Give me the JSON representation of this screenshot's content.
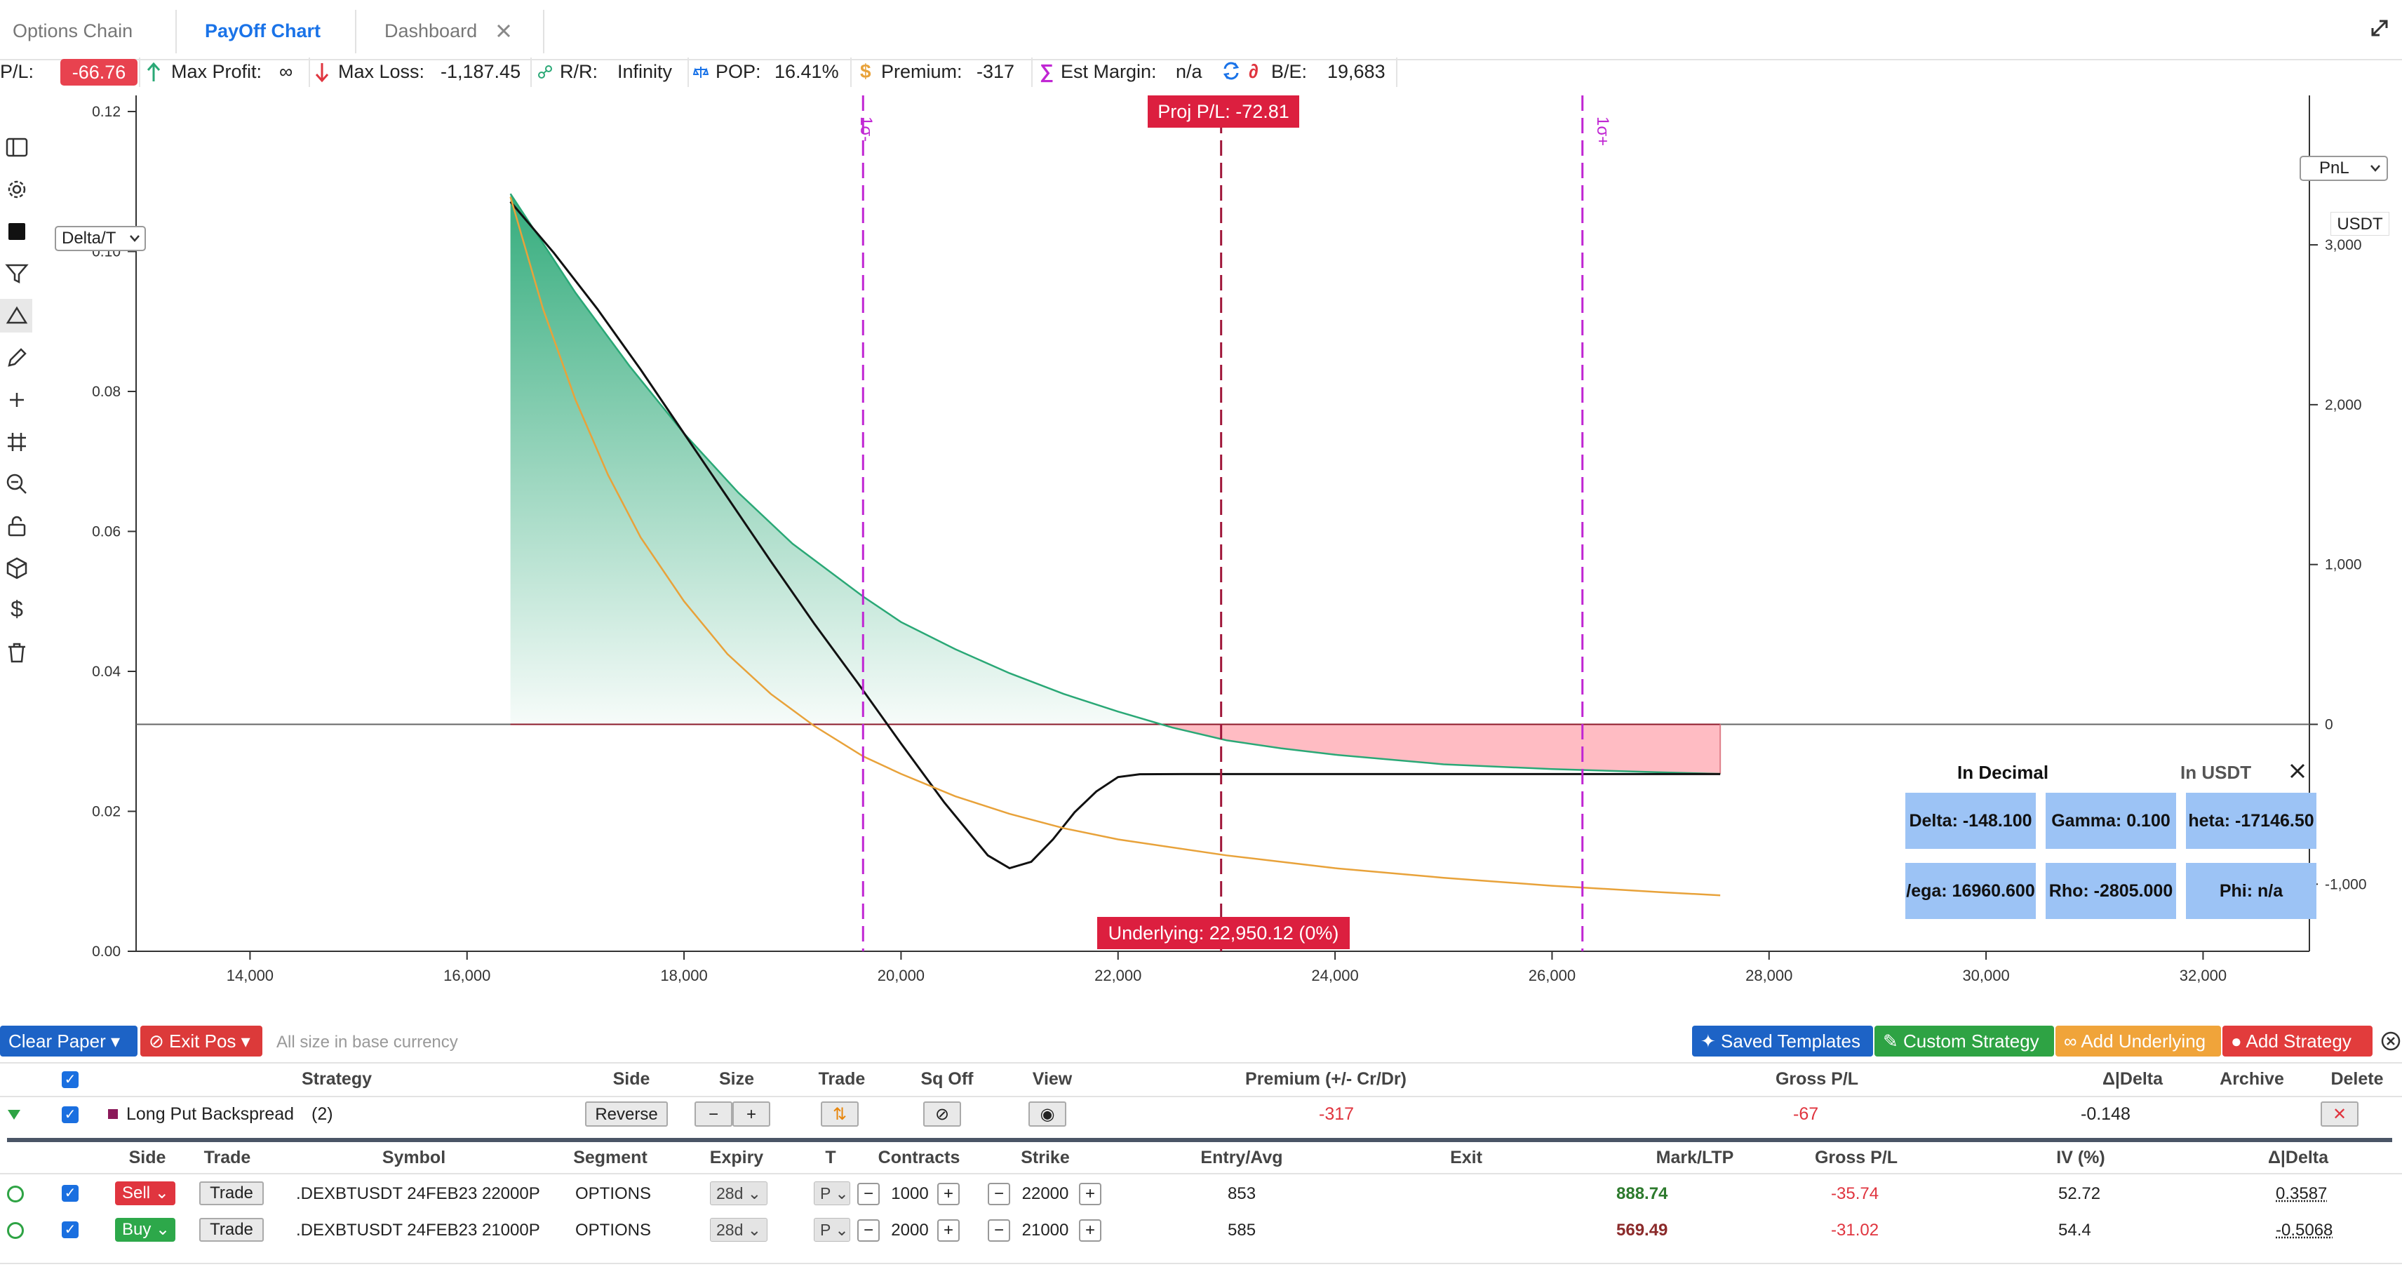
{
  "tabs": [
    {
      "label": "Options Chain"
    },
    {
      "label": "PayOff Chart"
    },
    {
      "label": "Dashboard"
    }
  ],
  "metrics": {
    "pl_label": "P/L:",
    "pl_value": "-66.76",
    "max_profit_label": "Max Profit:",
    "max_profit_value": "∞",
    "max_loss_label": "Max Loss:",
    "max_loss_value": "-1,187.45",
    "rr_label": "R/R:",
    "rr_value": "Infinity",
    "pop_label": "POP:",
    "pop_value": "16.41%",
    "premium_label": "Premium:",
    "premium_value": "-317",
    "margin_label": "Est Margin:",
    "margin_value": "n/a",
    "be_label": "B/E:",
    "be_value": "19,683"
  },
  "chart": {
    "proj_pl": "Proj P/L: -72.81",
    "underlying": "Underlying: 22,950.12 (0%)",
    "sigma_minus": "1σ-",
    "sigma_plus": "1σ+",
    "left_selector": "Delta/T",
    "right_selector": "PnL",
    "currency": "USDT"
  },
  "chart_data": {
    "type": "line",
    "x_ticks": [
      "14,000",
      "16,000",
      "18,000",
      "20,000",
      "22,000",
      "24,000",
      "26,000",
      "28,000",
      "30,000",
      "32,000"
    ],
    "xlim": [
      12950,
      32980
    ],
    "left_ticks": [
      "0.12",
      "0.10",
      "0.08",
      "0.06",
      "0.04",
      "0.02",
      "0.00"
    ],
    "ylim_left": [
      0,
      0.1215
    ],
    "right_ticks": [
      "3,000",
      "2,000",
      "1,000",
      "0",
      "-1,000"
    ],
    "ylim_right": [
      -1420,
      3900
    ],
    "vlines": [
      {
        "x": 19650,
        "label": "1σ-"
      },
      {
        "x": 22950,
        "label": ""
      },
      {
        "x": 26280,
        "label": "1σ+"
      }
    ],
    "series": [
      {
        "axis": "right",
        "color": "#2aa876",
        "values": [
          [
            16400,
            3320
          ],
          [
            17000,
            2700
          ],
          [
            17500,
            2240
          ],
          [
            18000,
            1820
          ],
          [
            18500,
            1450
          ],
          [
            19000,
            1130
          ],
          [
            19650,
            800
          ],
          [
            20000,
            640
          ],
          [
            20500,
            470
          ],
          [
            21000,
            320
          ],
          [
            21500,
            190
          ],
          [
            22000,
            80
          ],
          [
            22500,
            -20
          ],
          [
            23000,
            -100
          ],
          [
            23500,
            -150
          ],
          [
            24000,
            -190
          ],
          [
            25000,
            -250
          ],
          [
            26000,
            -280
          ],
          [
            27000,
            -300
          ],
          [
            27550,
            -310
          ]
        ]
      },
      {
        "axis": "right",
        "color": "#111111",
        "values": [
          [
            16400,
            3270
          ],
          [
            16800,
            2950
          ],
          [
            17200,
            2600
          ],
          [
            17600,
            2220
          ],
          [
            18000,
            1820
          ],
          [
            18400,
            1420
          ],
          [
            18800,
            1020
          ],
          [
            19200,
            630
          ],
          [
            19600,
            260
          ],
          [
            20000,
            -120
          ],
          [
            20400,
            -490
          ],
          [
            20800,
            -820
          ],
          [
            21000,
            -900
          ],
          [
            21200,
            -860
          ],
          [
            21400,
            -720
          ],
          [
            21600,
            -550
          ],
          [
            21800,
            -420
          ],
          [
            22000,
            -330
          ],
          [
            22200,
            -312
          ],
          [
            22600,
            -311
          ],
          [
            27550,
            -311
          ]
        ]
      },
      {
        "axis": "right",
        "color": "#e8a23a",
        "values": [
          [
            16400,
            3300
          ],
          [
            16700,
            2600
          ],
          [
            17000,
            2030
          ],
          [
            17300,
            1560
          ],
          [
            17600,
            1170
          ],
          [
            18000,
            770
          ],
          [
            18400,
            440
          ],
          [
            18800,
            190
          ],
          [
            19200,
            -10
          ],
          [
            19650,
            -200
          ],
          [
            20000,
            -310
          ],
          [
            20500,
            -450
          ],
          [
            21000,
            -560
          ],
          [
            21500,
            -650
          ],
          [
            22000,
            -720
          ],
          [
            23000,
            -820
          ],
          [
            24000,
            -900
          ],
          [
            25000,
            -960
          ],
          [
            26000,
            -1010
          ],
          [
            27000,
            -1050
          ],
          [
            27550,
            -1070
          ]
        ]
      }
    ]
  },
  "greeks": {
    "title_decimal": "In Decimal",
    "title_usdt": "In USDT",
    "cells": [
      "Delta: -148.100",
      "Gamma: 0.100",
      "heta: -17146.50",
      "/ega: 16960.600",
      "Rho: -2805.000",
      "Phi: n/a"
    ]
  },
  "actions": {
    "clear_paper": "Clear Paper",
    "exit_pos": "Exit Pos",
    "note": "All size in base currency",
    "saved_templates": "Saved Templates",
    "custom_strategy": "Custom Strategy",
    "add_underlying": "Add Underlying",
    "add_strategy": "Add Strategy"
  },
  "strategy_table": {
    "headers": [
      "Strategy",
      "Side",
      "Size",
      "Trade",
      "Sq Off",
      "View",
      "Premium (+/- Cr/Dr)",
      "Gross P/L",
      "Δ|Delta",
      "Archive",
      "Delete"
    ],
    "row": {
      "name": "Long Put Backspread",
      "count": "(2)",
      "side_button": "Reverse",
      "premium": "-317",
      "gross_pl": "-67",
      "delta": "-0.148"
    }
  },
  "legs_table": {
    "headers": [
      "Side",
      "Trade",
      "Symbol",
      "Segment",
      "Expiry",
      "T",
      "Contracts",
      "Strike",
      "Entry/Avg",
      "Exit",
      "Mark/LTP",
      "Gross P/L",
      "IV (%)",
      "Δ|Delta"
    ],
    "rows": [
      {
        "side": "Sell",
        "trade": "Trade",
        "symbol": ".DEXBTUSDT 24FEB23 22000P",
        "segment": "OPTIONS",
        "expiry": "28d",
        "type": "P",
        "contracts": "1000",
        "strike": "22000",
        "entry": "853",
        "exit": "",
        "mark": "888.74",
        "gross_pl": "-35.74",
        "iv": "52.72",
        "delta": "0.3587",
        "side_color": "#e0353f",
        "mark_color": "#2d7a2d"
      },
      {
        "side": "Buy",
        "trade": "Trade",
        "symbol": ".DEXBTUSDT 24FEB23 21000P",
        "segment": "OPTIONS",
        "expiry": "28d",
        "type": "P",
        "contracts": "2000",
        "strike": "21000",
        "entry": "585",
        "exit": "",
        "mark": "569.49",
        "gross_pl": "-31.02",
        "iv": "54.4",
        "delta": "-0.5068",
        "side_color": "#2da84a",
        "mark_color": "#8b2a2a"
      }
    ]
  }
}
